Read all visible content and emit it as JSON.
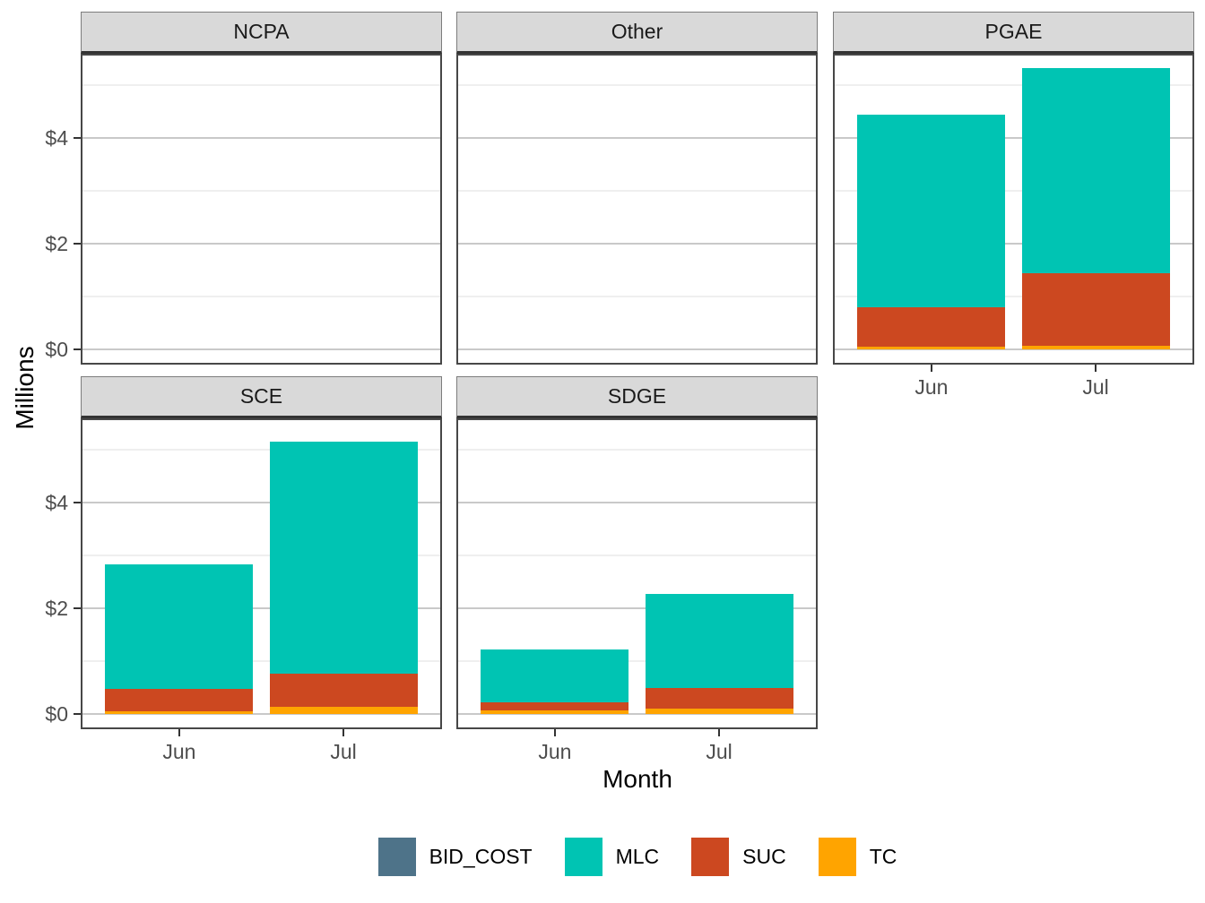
{
  "chart_data": {
    "type": "bar",
    "stacked": true,
    "faceted": true,
    "title": "",
    "xlabel": "Month",
    "ylabel": "Millions",
    "categories": [
      "Jun",
      "Jul"
    ],
    "y_ticks": [
      {
        "label": "$0",
        "value": 0
      },
      {
        "label": "$2",
        "value": 2
      },
      {
        "label": "$4",
        "value": 4
      }
    ],
    "y_minor_ticks": [
      1,
      3,
      5
    ],
    "ylim": [
      -0.28,
      5.6
    ],
    "grid": true,
    "legend_position": "bottom",
    "strip_fill": "#D9D9D9",
    "series_stack_order_bottom_to_top": [
      "TC",
      "SUC",
      "MLC",
      "BID_COST"
    ],
    "legend": [
      {
        "name": "BID_COST",
        "color": "#4E7389"
      },
      {
        "name": "MLC",
        "color": "#00C4B3"
      },
      {
        "name": "SUC",
        "color": "#CC4820"
      },
      {
        "name": "TC",
        "color": "#FFA400"
      }
    ],
    "facets": [
      {
        "name": "NCPA",
        "show_x_axis": false,
        "bars": [
          {
            "month": "Jun",
            "BID_COST": 0,
            "MLC": 0,
            "SUC": 0,
            "TC": 0
          },
          {
            "month": "Jul",
            "BID_COST": 0,
            "MLC": 0,
            "SUC": 0,
            "TC": 0
          }
        ]
      },
      {
        "name": "Other",
        "show_x_axis": false,
        "bars": [
          {
            "month": "Jun",
            "BID_COST": 0,
            "MLC": 0,
            "SUC": 0,
            "TC": 0
          },
          {
            "month": "Jul",
            "BID_COST": 0,
            "MLC": 0,
            "SUC": 0,
            "TC": 0
          }
        ]
      },
      {
        "name": "PGAE",
        "show_x_axis": true,
        "bars": [
          {
            "month": "Jun",
            "BID_COST": 0,
            "MLC": 3.65,
            "SUC": 0.75,
            "TC": 0.05
          },
          {
            "month": "Jul",
            "BID_COST": 0,
            "MLC": 3.88,
            "SUC": 1.37,
            "TC": 0.08
          }
        ]
      },
      {
        "name": "SCE",
        "show_x_axis": true,
        "bars": [
          {
            "month": "Jun",
            "BID_COST": 0,
            "MLC": 2.36,
            "SUC": 0.43,
            "TC": 0.05
          },
          {
            "month": "Jul",
            "BID_COST": 0,
            "MLC": 4.39,
            "SUC": 0.62,
            "TC": 0.15
          }
        ]
      },
      {
        "name": "SDGE",
        "show_x_axis": true,
        "bars": [
          {
            "month": "Jun",
            "BID_COST": 0,
            "MLC": 1.01,
            "SUC": 0.14,
            "TC": 0.08
          },
          {
            "month": "Jul",
            "BID_COST": 0,
            "MLC": 1.78,
            "SUC": 0.38,
            "TC": 0.11
          }
        ]
      }
    ]
  }
}
